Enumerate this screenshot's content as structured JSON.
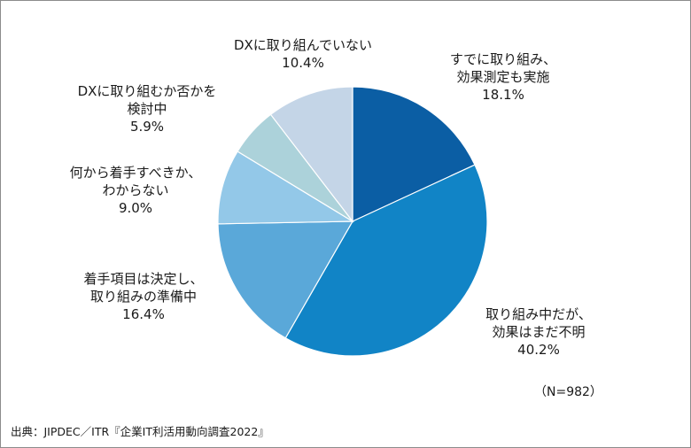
{
  "chart_data": {
    "type": "pie",
    "slices": [
      {
        "lines": [
          "すでに取り組み、",
          "効果測定も実施",
          "18.1%"
        ],
        "value": 18.1,
        "color": "#0b5ea4"
      },
      {
        "lines": [
          "取り組み中だが、",
          "効果はまだ不明",
          "40.2%"
        ],
        "value": 40.2,
        "color": "#1184c6"
      },
      {
        "lines": [
          "着手項目は決定し、",
          "取り組みの準備中",
          "16.4%"
        ],
        "value": 16.4,
        "color": "#5aa8d9"
      },
      {
        "lines": [
          "何から着手すべきか、",
          "わからない",
          "9.0%"
        ],
        "value": 9.0,
        "color": "#93c8e8"
      },
      {
        "lines": [
          "DXに取り組むか否かを",
          "検討中",
          "5.9%"
        ],
        "value": 5.9,
        "color": "#acd2da"
      },
      {
        "lines": [
          "DXに取り組んでいない",
          "10.4%"
        ],
        "value": 10.4,
        "color": "#c4d5e7"
      }
    ],
    "sample_note": "（N=982）",
    "source": "出典：JIPDEC／ITR『企業IT利活用動向調査2022』"
  }
}
